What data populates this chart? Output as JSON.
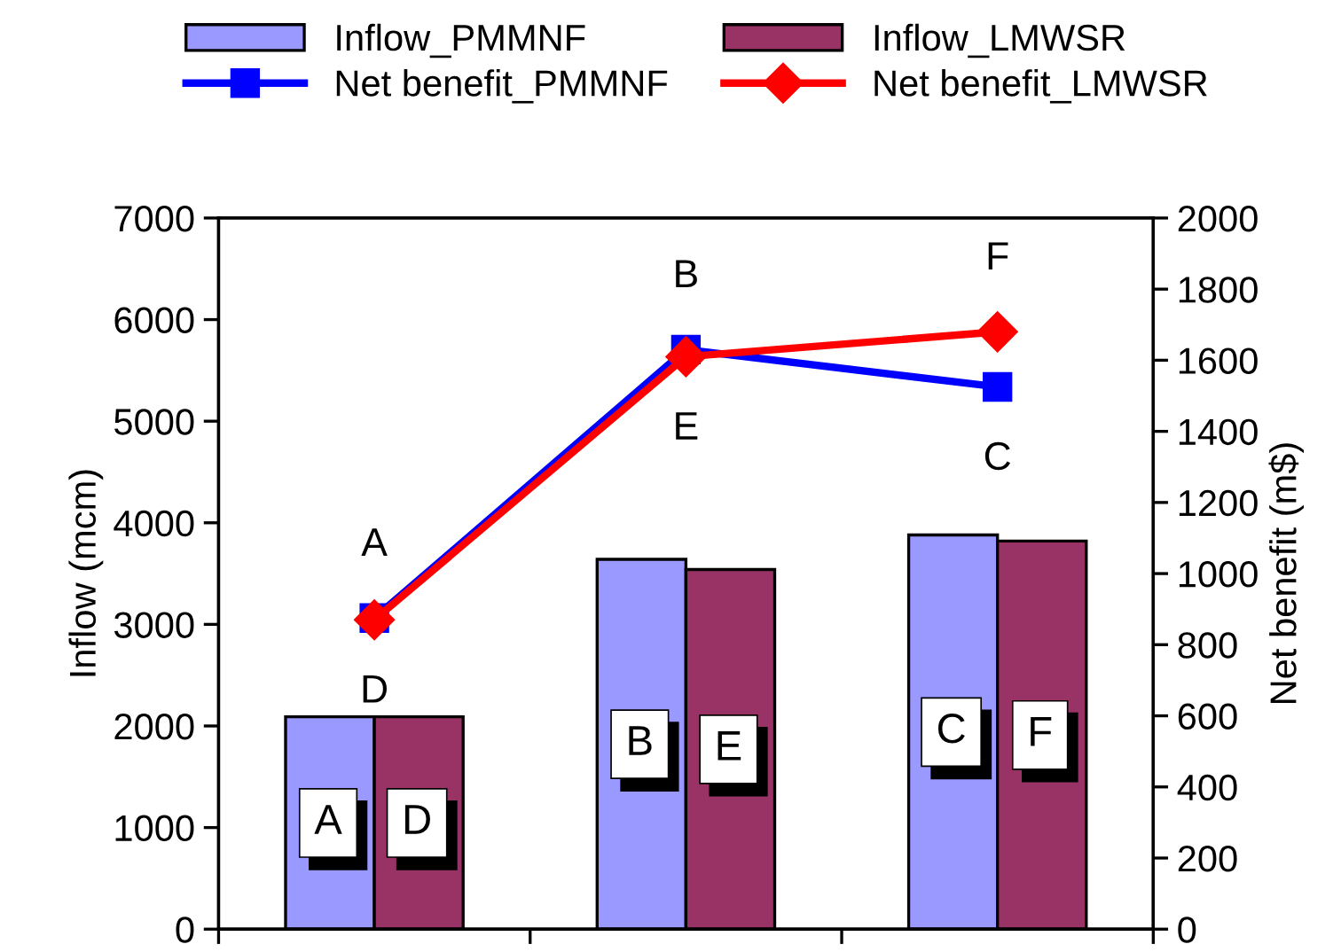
{
  "chart_data": {
    "type": "bar",
    "categories": [
      null,
      null,
      null
    ],
    "ylabel": "Inflow (mcm)",
    "y2label": "Net benefit (m$)",
    "ylim": [
      0,
      7000
    ],
    "yticks": [
      0,
      1000,
      2000,
      3000,
      4000,
      5000,
      6000,
      7000
    ],
    "y2lim": [
      0,
      2000
    ],
    "y2ticks": [
      0,
      200,
      400,
      600,
      800,
      1000,
      1200,
      1400,
      1600,
      1800,
      2000
    ],
    "legend": "top",
    "grid": false,
    "series": [
      {
        "name": "Inflow_PMMNF",
        "color": "#9999ff",
        "values": [
          2090,
          3640,
          3880
        ],
        "value_labels": [
          "A",
          "B",
          "C"
        ]
      },
      {
        "name": "Inflow_LMWSR",
        "color": "#993366",
        "values": [
          2090,
          3540,
          3820
        ],
        "value_labels": [
          "D",
          "E",
          "F"
        ]
      },
      {
        "name": "Net benefit_PMMNF",
        "type": "line",
        "axis": "y2",
        "color": "#0000ff",
        "marker": "square",
        "values": [
          875,
          1630,
          1525
        ],
        "value_labels": [
          "A",
          "B",
          "C"
        ]
      },
      {
        "name": "Net benefit_LMWSR",
        "type": "line",
        "axis": "y2",
        "color": "#ff0000",
        "marker": "diamond",
        "values": [
          870,
          1610,
          1680
        ],
        "value_labels": [
          "D",
          "E",
          "F"
        ]
      }
    ]
  }
}
